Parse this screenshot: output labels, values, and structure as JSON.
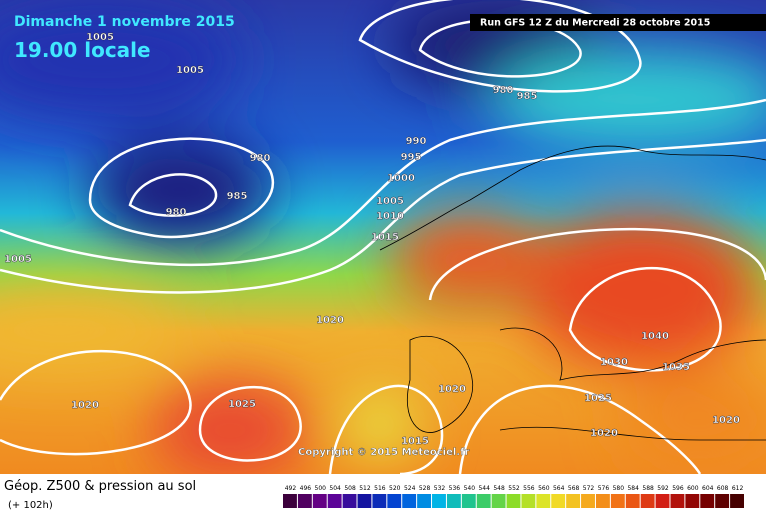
{
  "header": {
    "date": "Dimanche 1 novembre 2015",
    "time": "19.00 locale",
    "run": "Run GFS 12 Z du Mercredi 28 octobre 2015"
  },
  "map": {
    "pressure_labels": [
      "1005",
      "1005",
      "1005",
      "980",
      "980",
      "985",
      "980",
      "985",
      "990",
      "995",
      "1000",
      "1005",
      "1010",
      "1015",
      "1020",
      "1020",
      "1025",
      "1020",
      "1015",
      "1030",
      "1040",
      "1035",
      "1025",
      "1020",
      "1020"
    ],
    "copyright": "Copyright © 2015 Meteociel.fr"
  },
  "footer": {
    "title": "Géop. Z500 & pression au sol",
    "lead": "(+ 102h)"
  },
  "legend": {
    "labels": [
      492,
      496,
      500,
      504,
      508,
      512,
      516,
      520,
      524,
      528,
      532,
      536,
      540,
      544,
      548,
      552,
      556,
      560,
      564,
      568,
      572,
      576,
      580,
      584,
      588,
      592,
      596,
      600,
      604,
      608,
      612
    ]
  }
}
